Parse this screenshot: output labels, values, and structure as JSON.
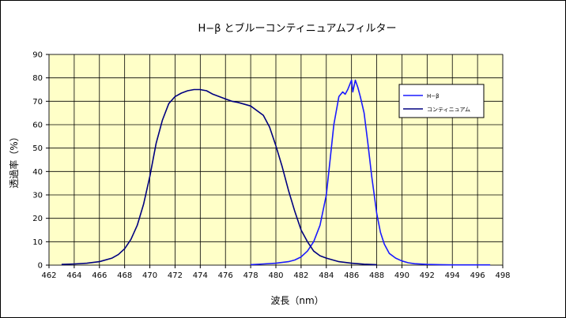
{
  "chart_data": {
    "type": "line",
    "title": "H−β とブルーコンティニュアムフィルター",
    "xlabel": "波長（nm）",
    "ylabel": "透過率（%）",
    "xlim": [
      462,
      498
    ],
    "ylim": [
      0,
      90
    ],
    "x_ticks": [
      "462",
      "464",
      "466",
      "468",
      "470",
      "472",
      "474",
      "476",
      "478",
      "480",
      "482",
      "484",
      "486",
      "488",
      "490",
      "492",
      "494",
      "496",
      "498"
    ],
    "y_ticks": [
      "0",
      "10",
      "20",
      "30",
      "40",
      "50",
      "60",
      "70",
      "80",
      "90"
    ],
    "grid": true,
    "legend_position": "right",
    "plot_background": "#ffffc8",
    "series": [
      {
        "name": "H−β",
        "color": "#1a1aff",
        "x": [
          478.0,
          479.0,
          480.0,
          481.0,
          481.5,
          482.0,
          482.5,
          483.0,
          483.5,
          484.0,
          484.3,
          484.6,
          485.0,
          485.3,
          485.5,
          485.7,
          486.0,
          486.1,
          486.3,
          486.5,
          486.7,
          487.0,
          487.3,
          487.6,
          488.0,
          488.3,
          488.6,
          489.0,
          489.5,
          490.0,
          490.5,
          491.0,
          492.0,
          493.0,
          494.0,
          495.0,
          497.0
        ],
        "values": [
          0.2,
          0.5,
          0.8,
          1.5,
          2.2,
          3.5,
          6.0,
          10.0,
          17.0,
          30.0,
          45.0,
          60.0,
          72.0,
          74.0,
          73.0,
          75.0,
          79.0,
          74.0,
          79.0,
          76.0,
          72.0,
          65.0,
          52.0,
          38.0,
          22.0,
          14.0,
          9.0,
          5.0,
          3.0,
          1.8,
          1.0,
          0.6,
          0.3,
          0.2,
          0.1,
          0.1,
          0.1
        ]
      },
      {
        "name": "コンティニュアム",
        "color": "#000080",
        "x": [
          463.0,
          464.0,
          465.0,
          466.0,
          467.0,
          467.5,
          468.0,
          468.5,
          469.0,
          469.5,
          470.0,
          470.5,
          471.0,
          471.5,
          472.0,
          472.5,
          473.0,
          473.5,
          474.0,
          474.5,
          475.0,
          475.5,
          476.0,
          476.5,
          477.0,
          478.0,
          479.0,
          479.5,
          480.0,
          480.5,
          481.0,
          481.5,
          482.0,
          482.5,
          483.0,
          483.5,
          484.0,
          485.0,
          486.0,
          487.0,
          488.0
        ],
        "values": [
          0.3,
          0.5,
          0.8,
          1.5,
          3.0,
          4.5,
          7.0,
          11.0,
          17.0,
          26.0,
          38.0,
          52.0,
          62.0,
          69.0,
          72.0,
          73.5,
          74.5,
          75.0,
          75.0,
          74.5,
          73.0,
          72.0,
          71.0,
          70.0,
          69.5,
          68.0,
          64.0,
          59.0,
          51.0,
          42.0,
          32.0,
          23.0,
          15.0,
          10.0,
          6.0,
          4.0,
          3.0,
          1.5,
          0.8,
          0.4,
          0.2
        ]
      }
    ]
  }
}
